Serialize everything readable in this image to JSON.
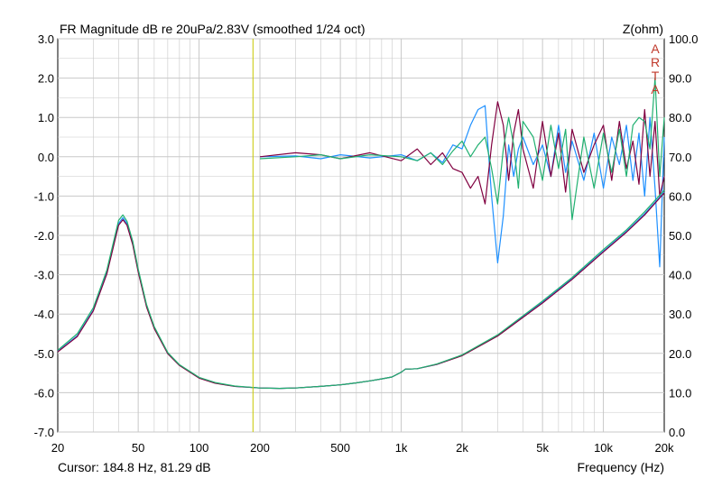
{
  "chart_data": {
    "type": "line",
    "title": "FR Magnitude dB re 20uPa/2.83V (smoothed 1/24 oct)",
    "right_axis_label": "Z(ohm)",
    "xlabel": "Frequency (Hz)",
    "x_scale": "log",
    "xlim": [
      20,
      20000
    ],
    "ylim": [
      -7.0,
      3.0
    ],
    "y2lim": [
      0.0,
      100.0
    ],
    "grid": true,
    "x_ticks": [
      {
        "value": 20,
        "label": "20"
      },
      {
        "value": 50,
        "label": "50"
      },
      {
        "value": 100,
        "label": "100"
      },
      {
        "value": 200,
        "label": "200"
      },
      {
        "value": 500,
        "label": "500"
      },
      {
        "value": 1000,
        "label": "1k"
      },
      {
        "value": 2000,
        "label": "2k"
      },
      {
        "value": 5000,
        "label": "5k"
      },
      {
        "value": 10000,
        "label": "10k"
      },
      {
        "value": 20000,
        "label": "20k"
      }
    ],
    "y_ticks": [
      {
        "value": 3,
        "label": "3.0"
      },
      {
        "value": 2,
        "label": "2.0"
      },
      {
        "value": 1,
        "label": "1.0"
      },
      {
        "value": 0,
        "label": "0.0"
      },
      {
        "value": -1,
        "label": "-1.0"
      },
      {
        "value": -2,
        "label": "-2.0"
      },
      {
        "value": -3,
        "label": "-3.0"
      },
      {
        "value": -4,
        "label": "-4.0"
      },
      {
        "value": -5,
        "label": "-5.0"
      },
      {
        "value": -6,
        "label": "-6.0"
      },
      {
        "value": -7,
        "label": "-7.0"
      }
    ],
    "y2_ticks": [
      {
        "value": 100,
        "label": "100.0"
      },
      {
        "value": 90,
        "label": "90.0"
      },
      {
        "value": 80,
        "label": "80.0"
      },
      {
        "value": 70,
        "label": "70.0"
      },
      {
        "value": 60,
        "label": "60.0"
      },
      {
        "value": 50,
        "label": "50.0"
      },
      {
        "value": 40,
        "label": "40.0"
      },
      {
        "value": 30,
        "label": "30.0"
      },
      {
        "value": 20,
        "label": "20.0"
      },
      {
        "value": 10,
        "label": "10.0"
      },
      {
        "value": 0,
        "label": "0.0"
      }
    ],
    "cursor": {
      "x": 184.8,
      "text": "Cursor: 184.8 Hz, 81.29 dB",
      "color": "#c8c800"
    },
    "art_letters": [
      "A",
      "R",
      "T",
      "A"
    ],
    "colors": {
      "grid": "#c8c8c8",
      "frame": "#000000",
      "art": "#c0392b"
    },
    "series": [
      {
        "axis": "y",
        "color": "#1e90ff",
        "x": [
          200,
          300,
          400,
          500,
          700,
          1000,
          1200,
          1400,
          1600,
          1800,
          2000,
          2200,
          2400,
          2600,
          2800,
          3000,
          3200,
          3400,
          3600,
          3800,
          4000,
          4500,
          5000,
          5500,
          6000,
          6500,
          7000,
          8000,
          9000,
          10000,
          11000,
          12000,
          13000,
          14000,
          15000,
          16000,
          17000,
          18000,
          19000,
          20000
        ],
        "y": [
          0.0,
          0.02,
          -0.05,
          0.05,
          -0.03,
          0.05,
          -0.1,
          0.1,
          -0.15,
          0.3,
          0.2,
          0.8,
          1.2,
          1.3,
          -1.0,
          -2.7,
          -1.5,
          0.3,
          -0.5,
          0.2,
          0.5,
          -0.2,
          0.3,
          -0.5,
          0.8,
          -0.4,
          0.4,
          -0.6,
          0.6,
          -0.8,
          0.5,
          -0.2,
          0.8,
          -0.6,
          0.6,
          -1.0,
          1.0,
          -0.8,
          -2.8,
          0.5
        ]
      },
      {
        "axis": "y",
        "color": "#800040",
        "x": [
          200,
          300,
          400,
          500,
          700,
          1000,
          1200,
          1400,
          1600,
          1800,
          2000,
          2200,
          2400,
          2600,
          2800,
          3000,
          3200,
          3400,
          3600,
          3800,
          4000,
          4500,
          5000,
          5500,
          6000,
          6500,
          7000,
          8000,
          9000,
          10000,
          11000,
          12000,
          13000,
          14000,
          15000,
          16000,
          17000,
          18000,
          19000,
          20000
        ],
        "y": [
          0.0,
          0.1,
          0.05,
          -0.05,
          0.1,
          -0.1,
          0.2,
          -0.2,
          0.1,
          -0.3,
          -0.4,
          -0.8,
          -0.5,
          -1.2,
          0.3,
          1.4,
          0.8,
          -0.6,
          0.6,
          1.2,
          0.2,
          -0.8,
          0.9,
          -0.5,
          0.6,
          -0.9,
          0.7,
          -0.4,
          0.3,
          0.8,
          -0.6,
          0.9,
          -0.3,
          0.4,
          -0.7,
          1.2,
          -0.5,
          0.9,
          -1.0,
          -0.5
        ]
      },
      {
        "axis": "y",
        "color": "#20b070",
        "x": [
          200,
          300,
          400,
          500,
          700,
          1000,
          1200,
          1400,
          1600,
          1800,
          2000,
          2200,
          2400,
          2600,
          2800,
          3000,
          3200,
          3400,
          3600,
          3800,
          4000,
          4500,
          5000,
          5500,
          6000,
          6500,
          7000,
          8000,
          9000,
          10000,
          11000,
          12000,
          13000,
          14000,
          15000,
          16000,
          17000,
          18000,
          19000,
          20000
        ],
        "y": [
          -0.05,
          0.0,
          0.05,
          -0.05,
          0.05,
          0.0,
          -0.1,
          0.1,
          -0.2,
          0.15,
          0.4,
          0.0,
          0.3,
          0.5,
          -0.3,
          -1.2,
          0.2,
          1.0,
          0.3,
          -0.8,
          0.9,
          0.5,
          -0.6,
          0.8,
          -0.3,
          0.7,
          -1.6,
          0.5,
          -0.8,
          0.6,
          -0.4,
          0.7,
          -0.5,
          0.8,
          1.0,
          0.9,
          0.2,
          2.0,
          -0.5,
          1.0
        ]
      },
      {
        "axis": "y2",
        "color": "#1e90ff",
        "x": [
          20,
          25,
          30,
          35,
          40,
          42,
          44,
          47,
          50,
          55,
          60,
          70,
          80,
          100,
          120,
          150,
          200,
          250,
          300,
          400,
          500,
          600,
          700,
          800,
          900,
          1000,
          1050,
          1100,
          1200,
          1500,
          2000,
          3000,
          5000,
          7000,
          10000,
          13000,
          16000,
          20000
        ],
        "y": [
          20.5,
          24.5,
          31.0,
          40.5,
          53.0,
          54.5,
          53.0,
          48.0,
          41.0,
          32.0,
          26.5,
          20.0,
          17.0,
          13.8,
          12.5,
          11.6,
          11.2,
          11.1,
          11.2,
          11.6,
          12.0,
          12.5,
          13.0,
          13.5,
          14.0,
          15.2,
          16.0,
          16.0,
          16.1,
          17.2,
          19.5,
          24.5,
          33.0,
          39.0,
          46.0,
          51.0,
          55.5,
          61.0
        ]
      },
      {
        "axis": "y2",
        "color": "#800040",
        "x": [
          20,
          25,
          30,
          35,
          40,
          42,
          44,
          47,
          50,
          55,
          60,
          70,
          80,
          100,
          120,
          150,
          200,
          250,
          300,
          400,
          500,
          600,
          700,
          800,
          900,
          1000,
          1050,
          1100,
          1200,
          1500,
          2000,
          3000,
          5000,
          7000,
          10000,
          13000,
          16000,
          20000
        ],
        "y": [
          20.4,
          24.3,
          30.8,
          40.2,
          52.6,
          54.0,
          52.6,
          47.6,
          40.7,
          31.8,
          26.3,
          19.9,
          16.9,
          13.7,
          12.4,
          11.6,
          11.2,
          11.1,
          11.2,
          11.6,
          12.0,
          12.5,
          13.0,
          13.5,
          14.0,
          15.2,
          16.0,
          16.0,
          16.1,
          17.2,
          19.4,
          24.4,
          32.8,
          38.8,
          45.8,
          50.8,
          55.2,
          60.8
        ]
      },
      {
        "axis": "y2",
        "color": "#20b070",
        "x": [
          20,
          25,
          30,
          35,
          40,
          42,
          44,
          47,
          50,
          55,
          60,
          70,
          80,
          100,
          120,
          150,
          200,
          250,
          300,
          400,
          500,
          600,
          700,
          800,
          900,
          1000,
          1050,
          1100,
          1200,
          1500,
          2000,
          3000,
          5000,
          7000,
          10000,
          13000,
          16000,
          20000
        ],
        "y": [
          20.8,
          25.0,
          31.6,
          41.2,
          53.8,
          55.2,
          53.6,
          48.5,
          41.5,
          32.4,
          26.8,
          20.2,
          17.1,
          13.9,
          12.6,
          11.7,
          11.2,
          11.1,
          11.2,
          11.6,
          12.0,
          12.5,
          13.0,
          13.5,
          14.0,
          15.2,
          16.0,
          16.0,
          16.1,
          17.3,
          19.6,
          24.7,
          33.3,
          39.3,
          46.4,
          51.4,
          56.0,
          61.5
        ]
      }
    ]
  }
}
